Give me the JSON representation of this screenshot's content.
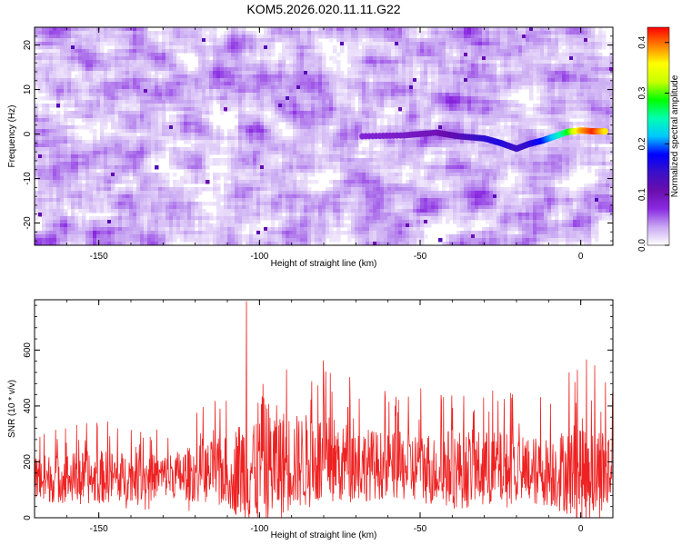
{
  "title": "KOM5.2026.020.11.11.G22",
  "chart_data": [
    {
      "type": "heatmap",
      "xlabel": "Height of straight line (km)",
      "ylabel": "Frequency (Hz)",
      "xlim": [
        -170,
        10
      ],
      "ylim": [
        -25,
        24
      ],
      "xticks": [
        -150,
        -100,
        -50,
        0
      ],
      "yticks": [
        -20,
        -10,
        0,
        10,
        20
      ],
      "colorbar": {
        "label": "Normalized spectral amplitude",
        "range": [
          0.0,
          0.43
        ],
        "ticks": [
          0.0,
          0.1,
          0.2,
          0.3,
          0.4
        ],
        "colormap": [
          "#ffffff",
          "#c9a9f2",
          "#8a2be2",
          "#6a0dad",
          "#3a10c8",
          "#0000ff",
          "#00c8ff",
          "#00ffb0",
          "#00ff00",
          "#c8ff00",
          "#ffff00",
          "#ff8000",
          "#ff0000"
        ]
      },
      "signal_track": {
        "description_x": [
          -68,
          -55,
          -45,
          -38,
          -30,
          -25,
          -20,
          -16,
          -12,
          -8,
          -4,
          0,
          4,
          8
        ],
        "frequency": [
          -0.5,
          -0.3,
          0.3,
          -0.5,
          -1.0,
          -2.0,
          -3.3,
          -2.2,
          -1.5,
          -0.5,
          0.5,
          0.8,
          0.6,
          0.6
        ],
        "amplitude": [
          0.08,
          0.09,
          0.1,
          0.12,
          0.15,
          0.16,
          0.14,
          0.15,
          0.18,
          0.22,
          0.28,
          0.38,
          0.42,
          0.36
        ]
      }
    },
    {
      "type": "line",
      "xlabel": "Height of straight line (km)",
      "ylabel": "SNR (10 * v/v)",
      "xlim": [
        -170,
        10
      ],
      "ylim": [
        0,
        780
      ],
      "xticks": [
        -150,
        -100,
        -50,
        0
      ],
      "yticks": [
        0,
        200,
        400,
        600
      ],
      "series": [
        {
          "color": "#ee2222",
          "envelope_x": [
            -170,
            -150,
            -130,
            -110,
            -100,
            -90,
            -80,
            -70,
            -60,
            -50,
            -40,
            -30,
            -20,
            -10,
            0,
            10
          ],
          "mean": [
            140,
            145,
            150,
            165,
            185,
            200,
            205,
            195,
            185,
            180,
            175,
            175,
            170,
            165,
            170,
            165
          ],
          "peak": [
            330,
            360,
            320,
            450,
            760,
            580,
            590,
            500,
            450,
            470,
            500,
            480,
            470,
            440,
            590,
            520
          ],
          "min": [
            20,
            20,
            20,
            25,
            30,
            40,
            40,
            35,
            30,
            30,
            30,
            25,
            25,
            25,
            25,
            25
          ],
          "notable_spike": {
            "x": -104,
            "y": 775
          }
        }
      ]
    }
  ]
}
